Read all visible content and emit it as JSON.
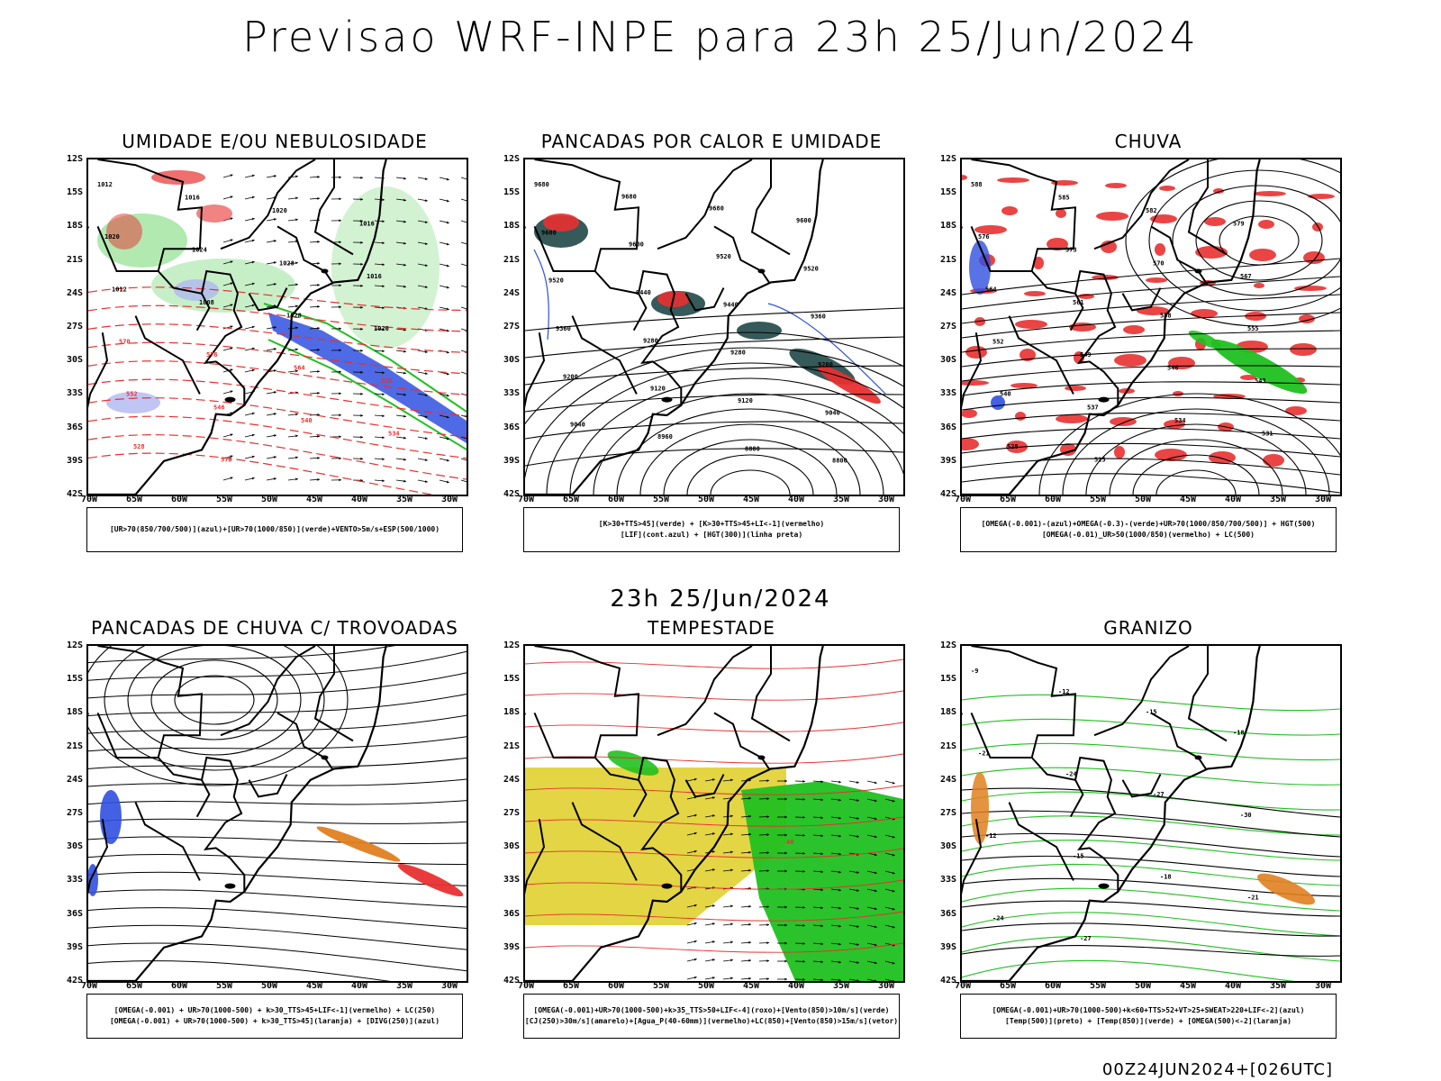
{
  "title": "Previsao WRF-INPE  para 23h 25/Jun/2024",
  "mid_time": "23h 25/Jun/2024",
  "footer": "00Z24JUN2024+[026UTC]",
  "lat_labels": [
    "12S",
    "15S",
    "18S",
    "21S",
    "24S",
    "27S",
    "30S",
    "33S",
    "36S",
    "39S",
    "42S"
  ],
  "lon_labels": [
    "70W",
    "65W",
    "60W",
    "55W",
    "50W",
    "45W",
    "40W",
    "35W",
    "30W"
  ],
  "colors": {
    "blue": "#3050e0",
    "light_blue": "#b0b8f0",
    "green": "#20c020",
    "red": "#e83030",
    "dark_teal": "#204848",
    "yellow": "#e0d030",
    "orange": "#e08020",
    "black": "#000000"
  },
  "panels": [
    {
      "title": "UMIDADE E/OU NEBULOSIDADE",
      "legend": [
        "[UR>70(850/700/500)](azul)+[UR>70(1000/850)](verde)+VENTO>5m/s+ESP(500/1000)"
      ],
      "contour_labels": [
        "1012",
        "1016",
        "1020",
        "1016",
        "1020",
        "1024",
        "1028",
        "1016",
        "1012",
        "1008",
        "1028",
        "1020",
        "570",
        "576",
        "564",
        "558",
        "552",
        "546",
        "540",
        "534",
        "528",
        "570"
      ]
    },
    {
      "title": "PANCADAS POR CALOR E UMIDADE",
      "legend": [
        "[K>30+TTS>45](verde) + [K>30+TTS>45+LI<-1](vermelho)",
        "[LIF](cont.azul) + [HGT(300)](linha preta)"
      ],
      "contour_labels": [
        "9680",
        "9680",
        "9680",
        "9600",
        "9600",
        "9600",
        "9520",
        "9520",
        "9520",
        "9440",
        "9440",
        "9360",
        "9360",
        "9280",
        "9280",
        "9200",
        "9200",
        "9120",
        "9120",
        "9040",
        "9040",
        "8960",
        "8880",
        "8800"
      ]
    },
    {
      "title": "CHUVA",
      "legend": [
        "[OMEGA(-0.001)-(azul)+OMEGA(-0.3)-(verde)+UR>70(1000/850/700/500)] + HGT(500)",
        "[OMEGA(-0.01)_UR>50(1000/850)(vermelho) + LC(500)"
      ],
      "contour_labels": [
        "588",
        "585",
        "582",
        "579",
        "576",
        "573",
        "570",
        "567",
        "564",
        "561",
        "558",
        "555",
        "552",
        "549",
        "546",
        "543",
        "540",
        "537",
        "534",
        "531",
        "528",
        "525"
      ]
    },
    {
      "title": "PANCADAS DE CHUVA C/ TROVOADAS",
      "legend": [
        "[OMEGA(-0.001) + UR>70(1000-500) + k>30_TTS>45+LIF<-1](vermelho) + LC(250)",
        "[OMEGA(-0.001) + UR>70(1000-500) + k>30_TTS>45](laranja) + [DIVG(250)](azul)"
      ],
      "contour_labels": []
    },
    {
      "title": "TEMPESTADE",
      "legend": [
        "[OMEGA(-0.001)+UR>70(1000-500)+k>35_TTS>50+LIF<-4](roxo)+[Vento(850)>10m/s](verde)",
        "[CJ(250)>30m/s](amarelo)+[Agua_P(40-60mm)](vermelho)+LC(850)+[Vento(850)>15m/s](vetor)"
      ],
      "contour_labels": [
        "40"
      ]
    },
    {
      "title": "GRANIZO",
      "legend": [
        "[OMEGA(-0.001)+UR>70(1000-500)+k<60+TTS>52+VT>25+SWEAT>220+LIF<-2](azul)",
        "[Temp(500)](preto) + [Temp(850)](verde) + [OMEGA(500)<-2](laranja)"
      ],
      "contour_labels": [
        "-9",
        "-12",
        "-15",
        "-18",
        "-21",
        "-24",
        "-27",
        "-30",
        "-12",
        "-15",
        "-18",
        "-21",
        "-24",
        "-27"
      ]
    }
  ]
}
